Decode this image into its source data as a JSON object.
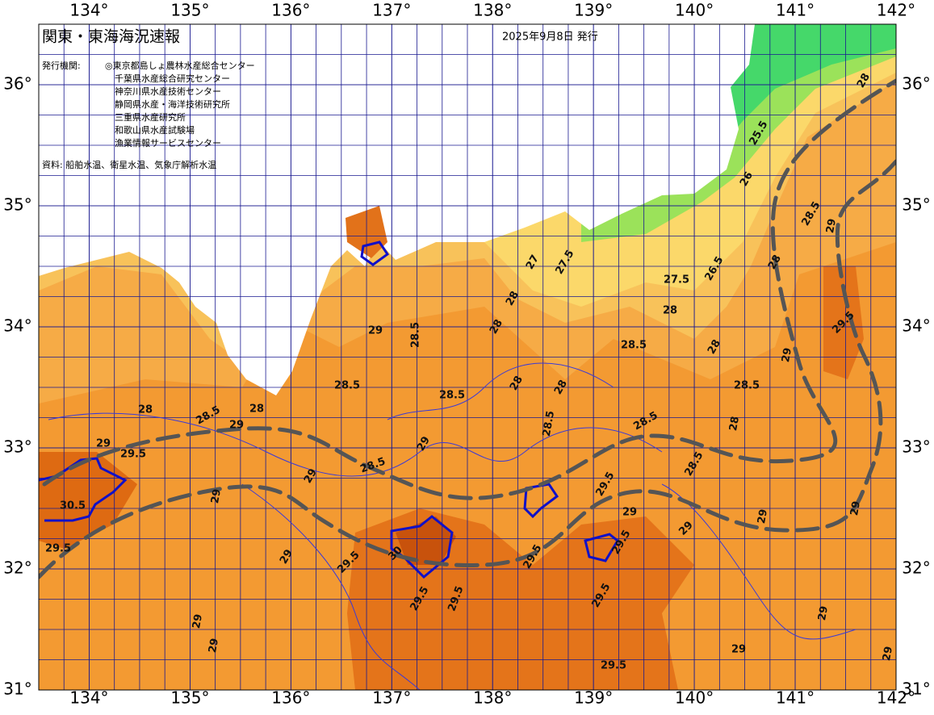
{
  "header": {
    "title": "関東・東海海況速報",
    "date": "2025年9月8日 発行",
    "issuer_label": "発行機関:",
    "issuers": [
      "◎東京都島しょ農林水産総合センター",
      "千葉県水産総合研究センター",
      "神奈川県水産技術センター",
      "静岡県水産・海洋技術研究所",
      "三重県水産研究所",
      "和歌山県水産試験場",
      "漁業情報サービスセンター"
    ],
    "source": "資料: 船舶水温、衛星水温、気象庁解析水温"
  },
  "map": {
    "xlim": [
      133.5,
      142
    ],
    "ylim": [
      31,
      36.5
    ],
    "xticks": [
      {
        "value": 134,
        "label": "134°"
      },
      {
        "value": 135,
        "label": "135°"
      },
      {
        "value": 136,
        "label": "136°"
      },
      {
        "value": 137,
        "label": "137°"
      },
      {
        "value": 138,
        "label": "138°"
      },
      {
        "value": 139,
        "label": "139°"
      },
      {
        "value": 140,
        "label": "140°"
      },
      {
        "value": 141,
        "label": "141°"
      },
      {
        "value": 142,
        "label": "142°"
      }
    ],
    "yticks": [
      {
        "value": 31,
        "label": "31°"
      },
      {
        "value": 32,
        "label": "32°"
      },
      {
        "value": 33,
        "label": "33°"
      },
      {
        "value": 34,
        "label": "34°"
      },
      {
        "value": 35,
        "label": "35°"
      },
      {
        "value": 36,
        "label": "36°"
      }
    ],
    "contour_labels": [
      29,
      28.5,
      28.5,
      28.5,
      28,
      28.5,
      29,
      28,
      29,
      29.5,
      28.5,
      29,
      29,
      29,
      30.5,
      29.5,
      29,
      29.5,
      30,
      29.5,
      29.5,
      29.5,
      29.5,
      28.5,
      28,
      28.5,
      28,
      28.5,
      28,
      27.5,
      26.5,
      28.5,
      29,
      28,
      29.5,
      29,
      29,
      29,
      29,
      29.5,
      29.5,
      29,
      29,
      29,
      29,
      25.5,
      26,
      28,
      27,
      27.5,
      28,
      28,
      28,
      28,
      28.5,
      28.5,
      29,
      29,
      29.5
    ]
  }
}
